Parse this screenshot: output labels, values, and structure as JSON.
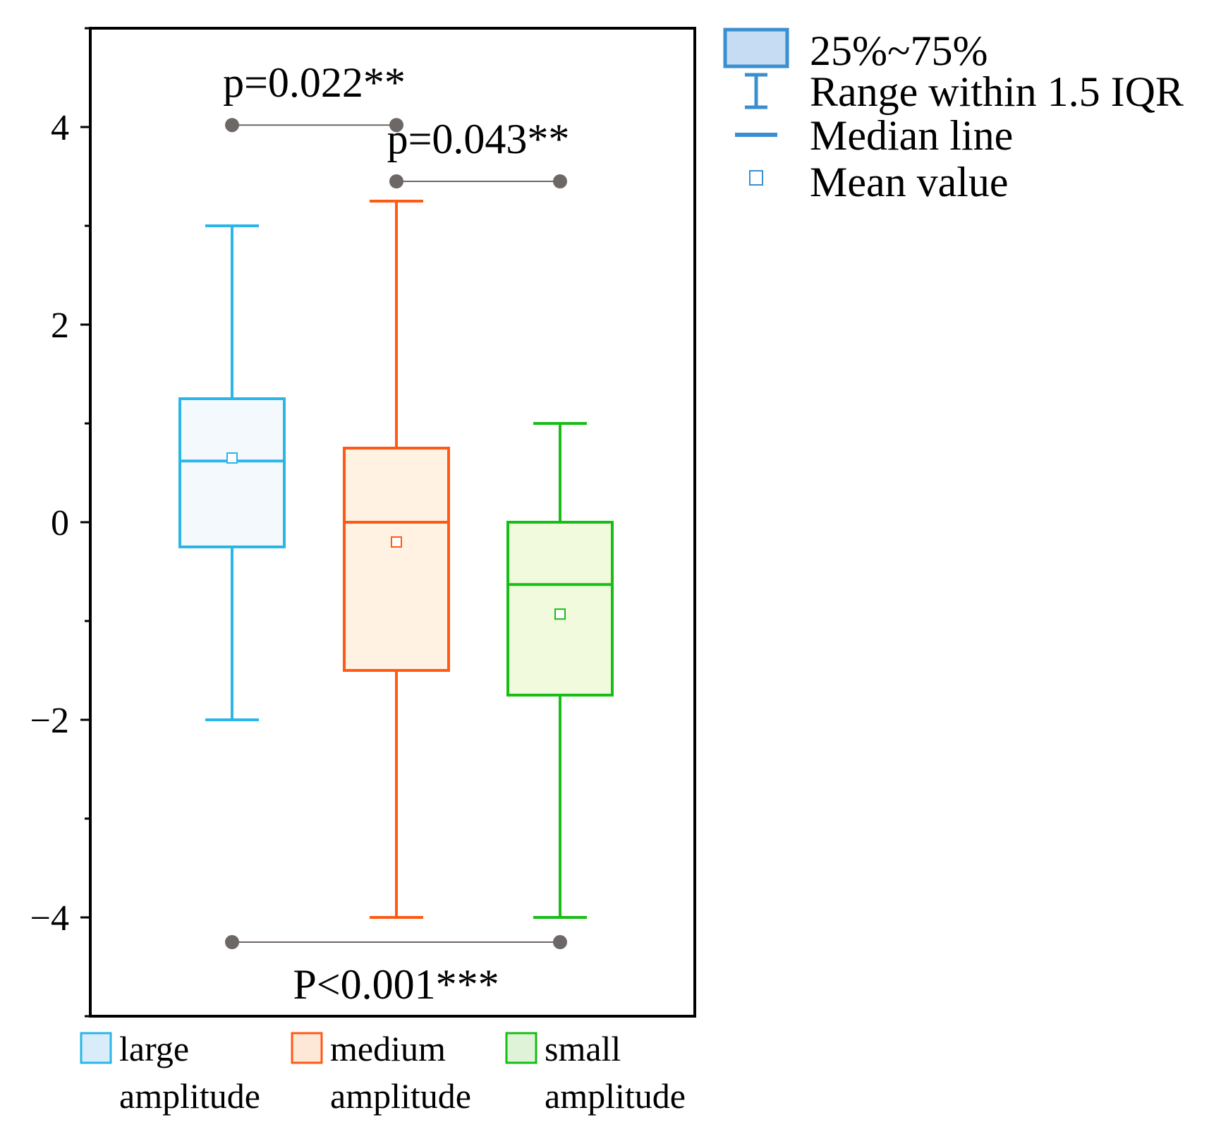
{
  "chart_data": {
    "type": "box",
    "ylim": [
      -5,
      5
    ],
    "yticks": [
      -4,
      -2,
      0,
      2,
      4
    ],
    "ytick_labels": [
      "−4",
      "−2",
      "0",
      "2",
      "4"
    ],
    "groups": [
      {
        "name": "large amplitude",
        "label_lines": [
          "large",
          "amplitude"
        ],
        "color": "#29b6e8",
        "fill": "#f4f9fd",
        "legend_fill": "#d8ecfa",
        "whisker_low": -2,
        "q1": -0.25,
        "median": 0.62,
        "q3": 1.25,
        "whisker_high": 3,
        "mean": 0.65
      },
      {
        "name": "medium amplitude",
        "label_lines": [
          "medium",
          "amplitude"
        ],
        "color": "#ff5a14",
        "fill": "#fff2e3",
        "legend_fill": "#fde7d6",
        "whisker_low": -4,
        "q1": -1.5,
        "median": 0,
        "q3": 0.75,
        "whisker_high": 3.25,
        "mean": -0.2
      },
      {
        "name": "small amplitude",
        "label_lines": [
          "small",
          "amplitude"
        ],
        "color": "#16be16",
        "fill": "#f1fadc",
        "legend_fill": "#dff3d8",
        "whisker_low": -4,
        "q1": -1.75,
        "median": -0.63,
        "q3": 0,
        "whisker_high": 1,
        "mean": -0.93
      }
    ],
    "comparisons": [
      {
        "from": 0,
        "to": 1,
        "y": 4.02,
        "label": "p=0.022**",
        "label_pos": "above"
      },
      {
        "from": 1,
        "to": 2,
        "y": 3.45,
        "label": "p=0.043**",
        "label_pos": "above"
      },
      {
        "from": 0,
        "to": 2,
        "y": -4.25,
        "label": "P<0.001***",
        "label_pos": "below"
      }
    ],
    "legend": {
      "placement": "top-right",
      "items": [
        {
          "symbol": "box",
          "label": "25%~75%"
        },
        {
          "symbol": "whisker",
          "label": "Range within 1.5 IQR"
        },
        {
          "symbol": "median",
          "label": "Median line"
        },
        {
          "symbol": "mean",
          "label": "Mean value"
        }
      ],
      "color": "#3a8fd0",
      "box_fill": "#c5dcf2"
    },
    "marker_color": "#6d6766",
    "grid": false
  }
}
